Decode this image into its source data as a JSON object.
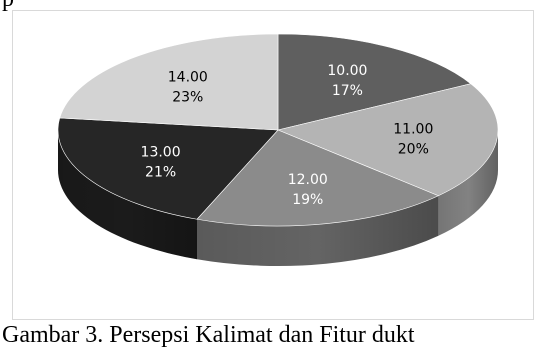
{
  "page": {
    "top_fragment": "p",
    "caption": "Gambar 3. Persepsi Kalimat dan Fitur dukt"
  },
  "chart_data": {
    "type": "pie",
    "style": "3d",
    "title": "",
    "legend": "none",
    "categories": [
      "10.00",
      "11.00",
      "12.00",
      "13.00",
      "14.00"
    ],
    "values": [
      17,
      20,
      19,
      21,
      23
    ],
    "percent_labels": [
      "17%",
      "20%",
      "19%",
      "21%",
      "23%"
    ],
    "colors": [
      "#5f5f5f",
      "#b4b4b4",
      "#8b8b8b",
      "#262626",
      "#d3d3d3"
    ],
    "label_colors": [
      "#ffffff",
      "#000000",
      "#ffffff",
      "#ffffff",
      "#000000"
    ]
  }
}
